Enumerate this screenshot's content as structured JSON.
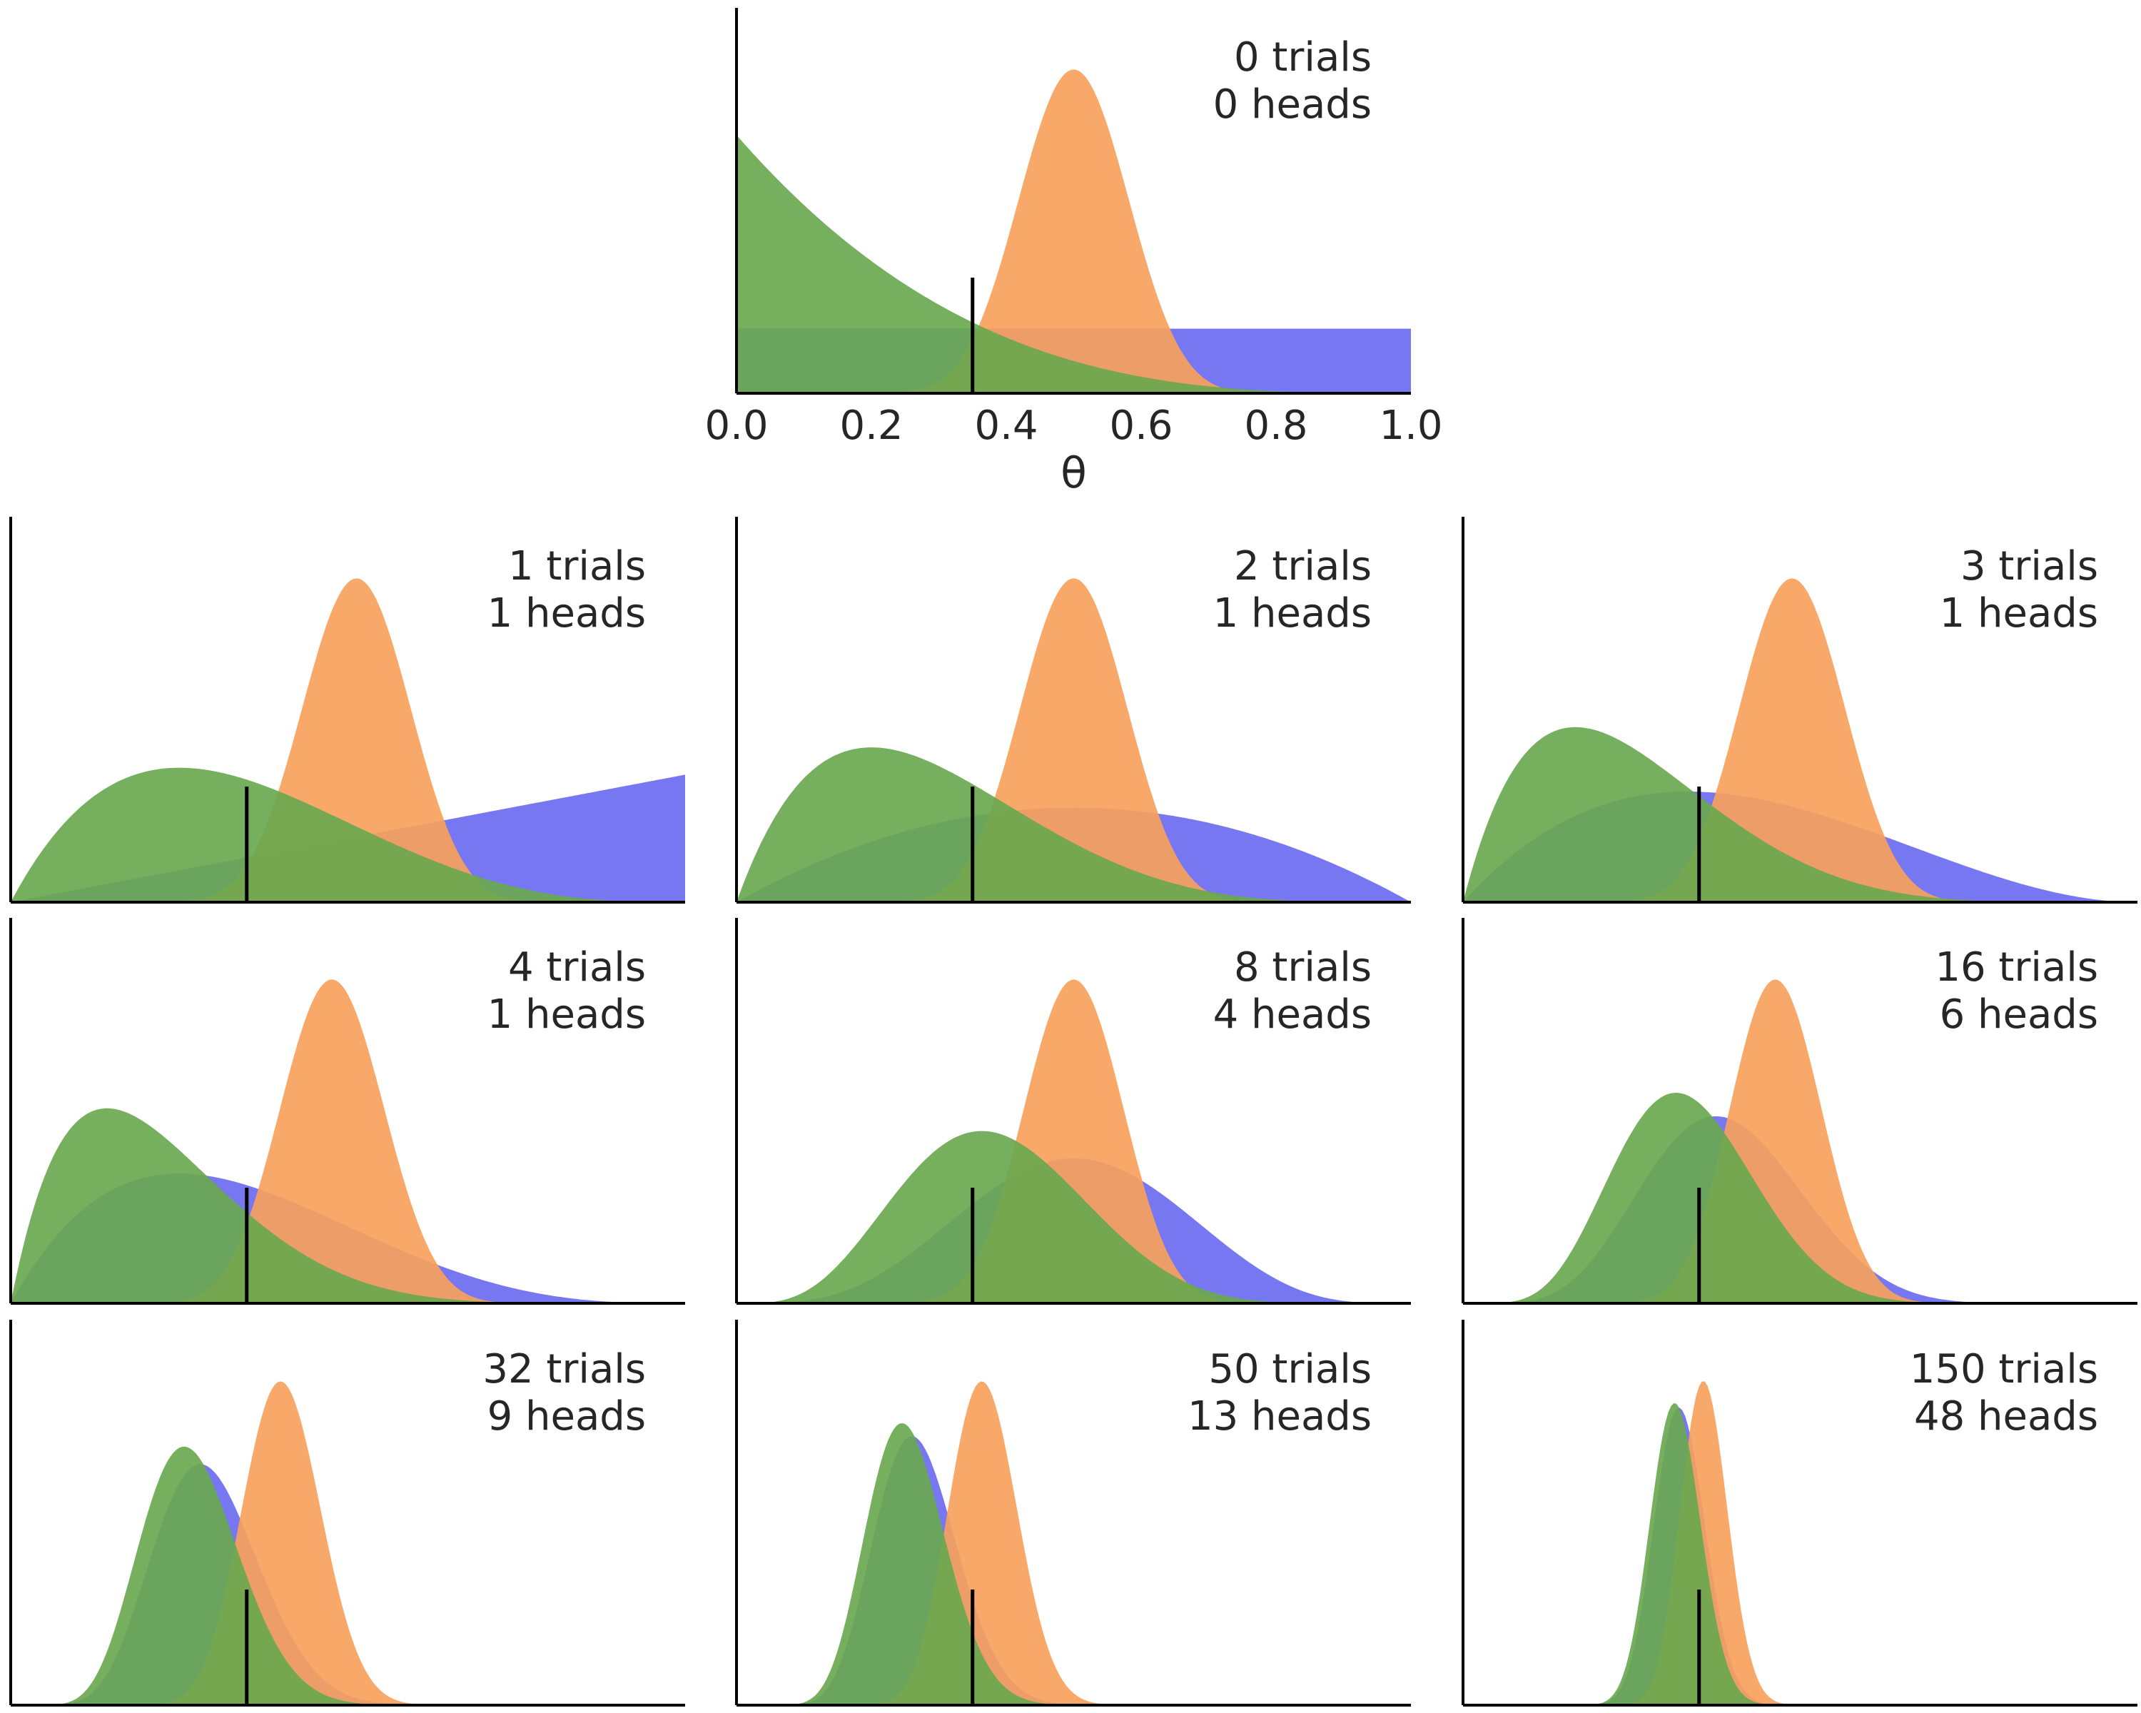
{
  "chart_data": {
    "type": "area",
    "xlabel": "θ",
    "x_ticks": [
      "0.0",
      "0.2",
      "0.4",
      "0.6",
      "0.8",
      "1.0"
    ],
    "xlim": [
      0,
      1
    ],
    "true_theta": 0.35,
    "colors": {
      "uniform": "#6b6bf0",
      "optimistic": "#f7a15c",
      "pessimistic": "#6aa84f"
    },
    "priors": [
      {
        "key": "uniform",
        "alpha": 1,
        "beta": 1
      },
      {
        "key": "optimistic",
        "alpha": 20,
        "beta": 20
      },
      {
        "key": "pessimistic",
        "alpha": 1,
        "beta": 4
      }
    ],
    "panels": [
      {
        "trials": 0,
        "heads": 0,
        "line1": "0 trials",
        "line2": "0 heads"
      },
      {
        "trials": 1,
        "heads": 1,
        "line1": "1 trials",
        "line2": "1 heads"
      },
      {
        "trials": 2,
        "heads": 1,
        "line1": "2 trials",
        "line2": "1 heads"
      },
      {
        "trials": 3,
        "heads": 1,
        "line1": "3 trials",
        "line2": "1 heads"
      },
      {
        "trials": 4,
        "heads": 1,
        "line1": "4 trials",
        "line2": "1 heads"
      },
      {
        "trials": 8,
        "heads": 4,
        "line1": "8 trials",
        "line2": "4 heads"
      },
      {
        "trials": 16,
        "heads": 6,
        "line1": "16 trials",
        "line2": "6 heads"
      },
      {
        "trials": 32,
        "heads": 9,
        "line1": "32 trials",
        "line2": "9 heads"
      },
      {
        "trials": 50,
        "heads": 13,
        "line1": "50 trials",
        "line2": "13 heads"
      },
      {
        "trials": 150,
        "heads": 48,
        "line1": "150 trials",
        "line2": "48 heads"
      }
    ]
  }
}
